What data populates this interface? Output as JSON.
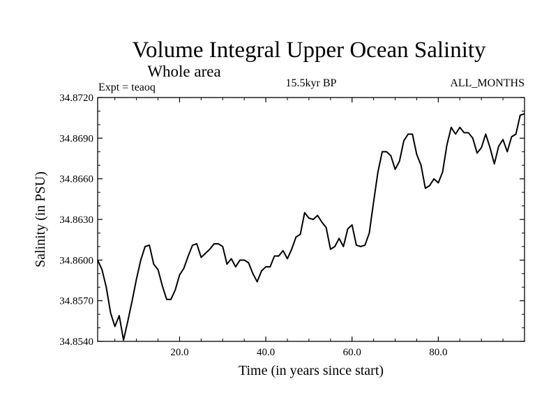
{
  "chart_data": {
    "type": "line",
    "title": "Volume Integral Upper Ocean Salinity",
    "subtitle": "Whole area",
    "left_label": "Expt = teaoq",
    "center_label": "15.5kyr BP",
    "right_label": "ALL_MONTHS",
    "xlabel": "Time (in years since start)",
    "ylabel": "Salinity (in PSU)",
    "xlim": [
      1,
      100
    ],
    "ylim": [
      34.854,
      34.872
    ],
    "xticks": [
      20,
      40,
      60,
      80
    ],
    "xtick_labels": [
      "20.0",
      "40.0",
      "60.0",
      "80.0"
    ],
    "yticks": [
      34.854,
      34.857,
      34.86,
      34.863,
      34.866,
      34.869,
      34.872
    ],
    "ytick_labels": [
      "34.8540",
      "34.8570",
      "34.8600",
      "34.8630",
      "34.8660",
      "34.8690",
      "34.8720"
    ],
    "grid": false,
    "series": [
      {
        "name": "salinity",
        "color": "#000000",
        "x": [
          1,
          2,
          3,
          4,
          5,
          6,
          7,
          8,
          9,
          10,
          11,
          12,
          13,
          14,
          15,
          16,
          17,
          18,
          19,
          20,
          21,
          22,
          23,
          24,
          25,
          26,
          27,
          28,
          29,
          30,
          31,
          32,
          33,
          34,
          35,
          36,
          37,
          38,
          39,
          40,
          41,
          42,
          43,
          44,
          45,
          46,
          47,
          48,
          49,
          50,
          51,
          52,
          53,
          54,
          55,
          56,
          57,
          58,
          59,
          60,
          61,
          62,
          63,
          64,
          65,
          66,
          67,
          68,
          69,
          70,
          71,
          72,
          73,
          74,
          75,
          76,
          77,
          78,
          79,
          80,
          81,
          82,
          83,
          84,
          85,
          86,
          87,
          88,
          89,
          90,
          91,
          92,
          93,
          94,
          95,
          96,
          97,
          98,
          99,
          100
        ],
        "values": [
          34.86,
          34.8593,
          34.858,
          34.8561,
          34.8551,
          34.8559,
          34.8541,
          34.8555,
          34.857,
          34.8586,
          34.86,
          34.861,
          34.8611,
          34.8597,
          34.8593,
          34.8581,
          34.8571,
          34.8571,
          34.8578,
          34.8589,
          34.8594,
          34.8603,
          34.8611,
          34.8612,
          34.8602,
          34.8605,
          34.8608,
          34.8612,
          34.8612,
          34.861,
          34.8597,
          34.8601,
          34.8595,
          34.86,
          34.86,
          34.8598,
          34.859,
          34.8584,
          34.8592,
          34.8595,
          34.8595,
          34.8603,
          34.8603,
          34.8607,
          34.8601,
          34.8608,
          34.8617,
          34.8619,
          34.8635,
          34.8631,
          34.863,
          34.8633,
          34.8628,
          34.8624,
          34.8608,
          34.861,
          34.8616,
          34.861,
          34.8623,
          34.8626,
          34.8611,
          34.861,
          34.8611,
          34.862,
          34.8643,
          34.8665,
          34.868,
          34.868,
          34.8677,
          34.8667,
          34.8673,
          34.8688,
          34.8693,
          34.8693,
          34.8678,
          34.867,
          34.8653,
          34.8655,
          34.866,
          34.8657,
          34.8665,
          34.8685,
          34.8698,
          34.8693,
          34.8698,
          34.8694,
          34.8694,
          34.869,
          34.8679,
          34.8683,
          34.8693,
          34.8683,
          34.8671,
          34.8684,
          34.8689,
          34.868,
          34.8691,
          34.8693,
          34.8707,
          34.8708
        ]
      }
    ]
  }
}
